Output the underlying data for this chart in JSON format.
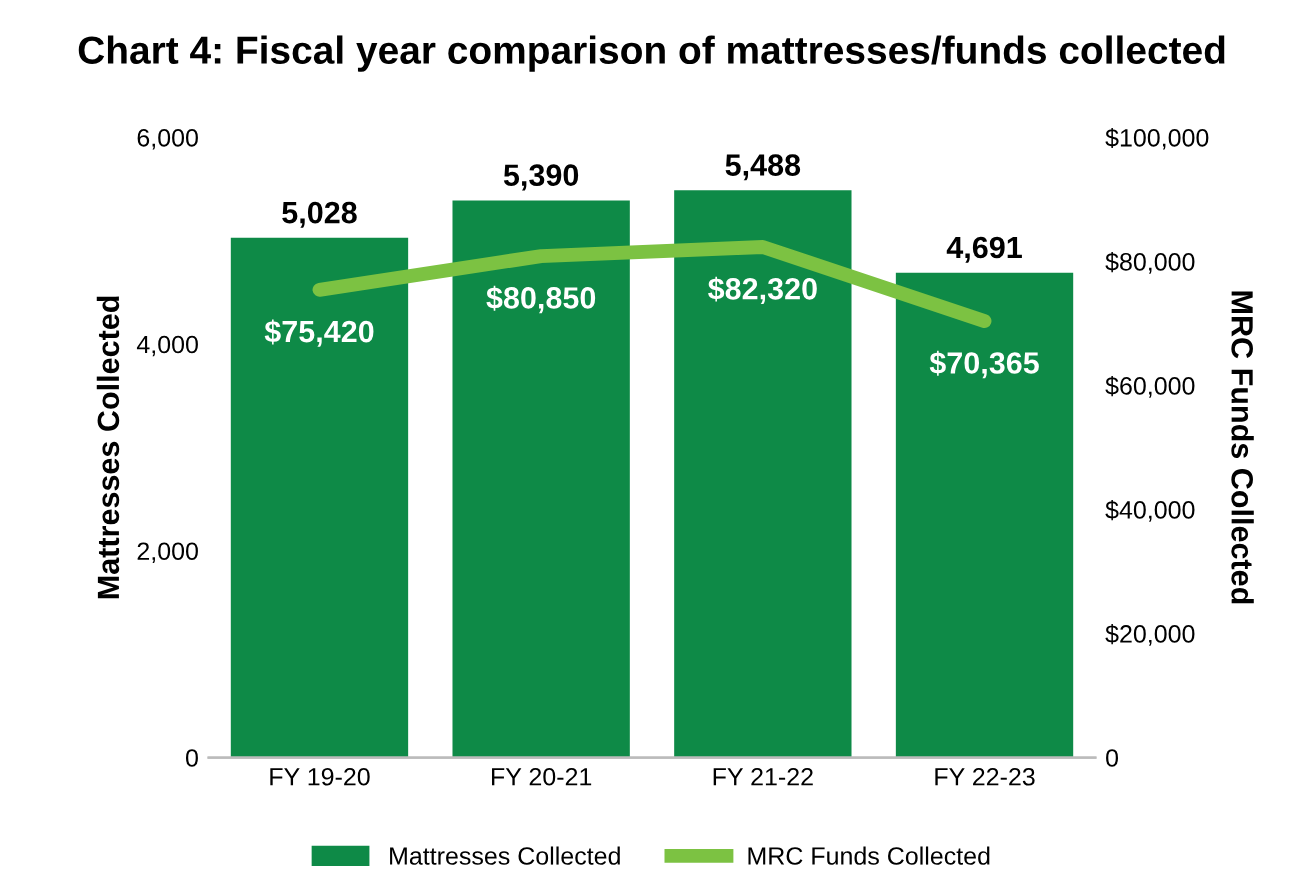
{
  "chart_data": {
    "type": "bar",
    "title": "Chart 4: Fiscal year comparison of mattresses/funds collected",
    "ylabel": "Mattresses Collected",
    "y2label": "MRC Funds Collected",
    "categories": [
      "FY 19-20",
      "FY 20-21",
      "FY 21-22",
      "FY 22-23"
    ],
    "series": [
      {
        "name": "Mattresses Collected",
        "color": "#0e8a47",
        "values": [
          5028,
          5390,
          5488,
          4691
        ],
        "value_labels": [
          "5,028",
          "5,390",
          "5,488",
          "4,691"
        ]
      },
      {
        "name": "MRC Funds Collected",
        "type": "line",
        "axis": "y2",
        "color": "#7cc242",
        "values": [
          75420,
          80850,
          82320,
          70365
        ],
        "value_labels": [
          "$75,420",
          "$80,850",
          "$82,320",
          "$70,365"
        ]
      }
    ],
    "ylim": [
      0,
      6000
    ],
    "yticks": [
      0,
      {
        "value": 2000,
        "label": "2,000"
      },
      {
        "value": 4000,
        "label": "4,000"
      },
      {
        "value": 6000,
        "label": "6,000"
      }
    ],
    "y2lim": [
      0,
      100000
    ],
    "y2ticks": [
      0,
      {
        "value": 20000,
        "label": "$20,000"
      },
      {
        "value": 40000,
        "label": "$40,000"
      },
      {
        "value": 60000,
        "label": "$60,000"
      },
      {
        "value": 80000,
        "label": "$80,000"
      },
      {
        "value": 100000,
        "label": "$100,000"
      }
    ],
    "grid": false,
    "legend": "bottom",
    "marker": "none"
  }
}
